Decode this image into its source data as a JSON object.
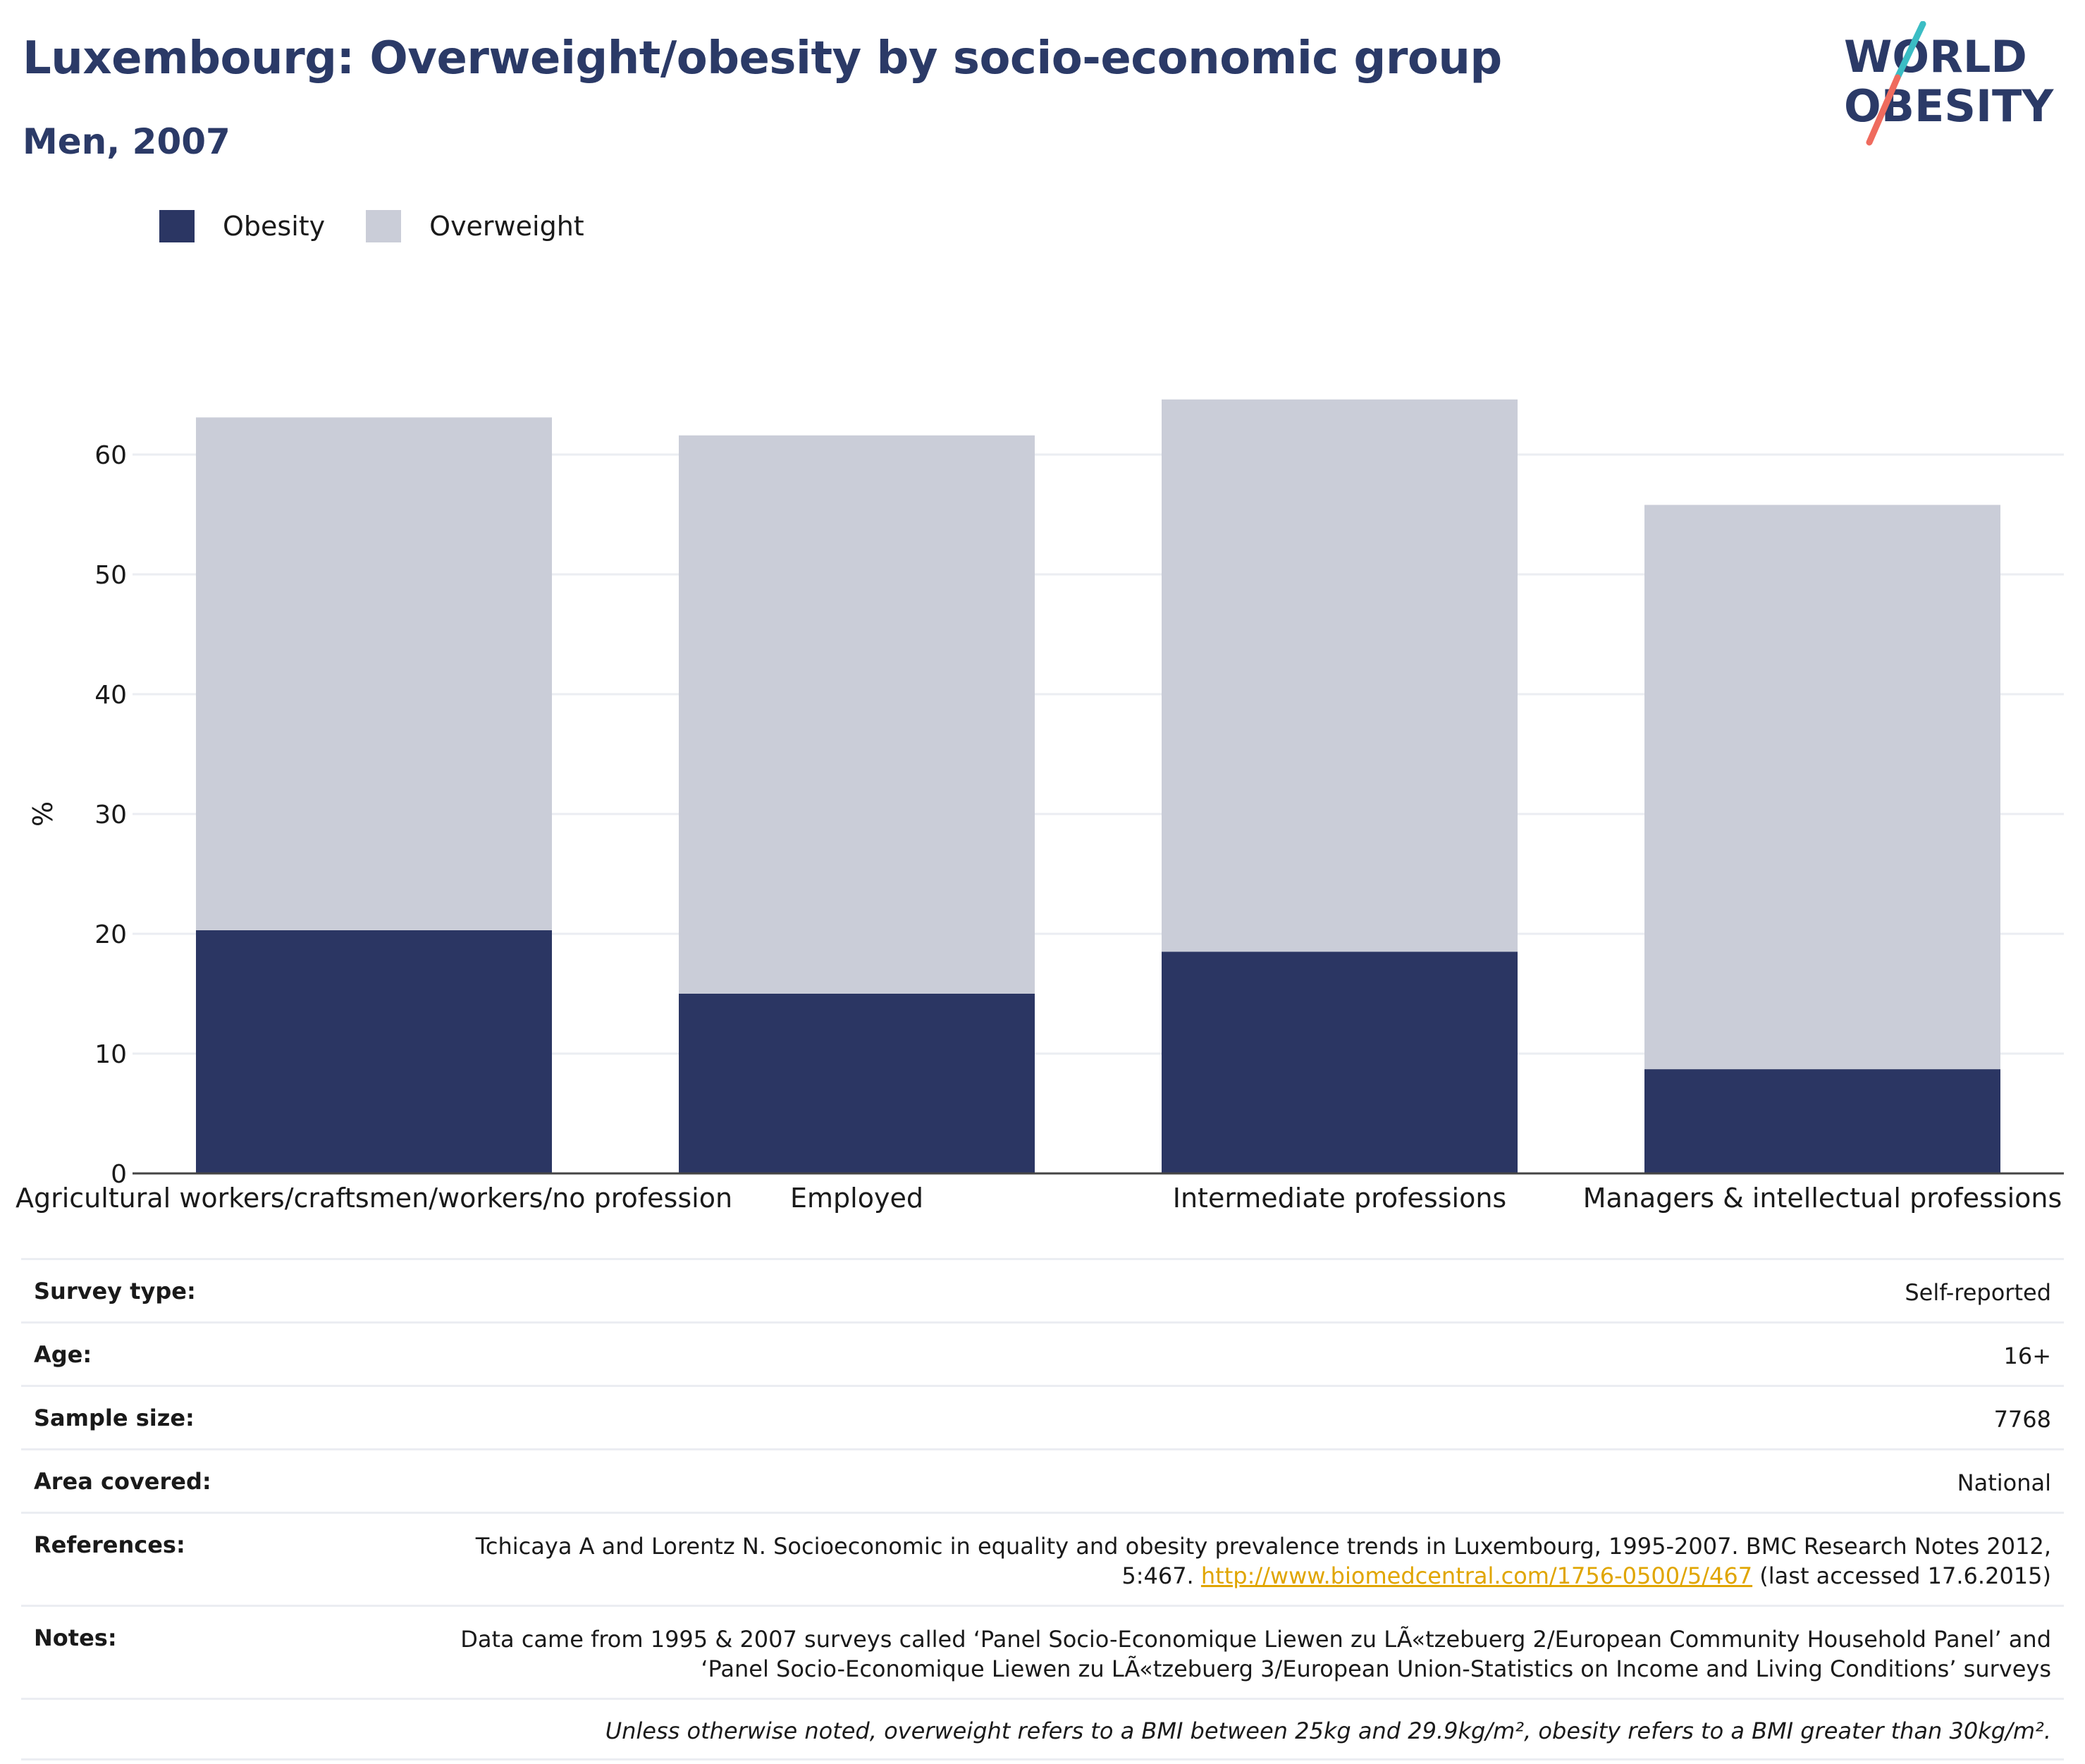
{
  "header": {
    "title": "Luxembourg: Overweight/obesity by socio-economic group",
    "subtitle": "Men, 2007"
  },
  "logo": {
    "line1": "WORLD",
    "line2": "OBESITY"
  },
  "colors": {
    "obesity": "#2b3663",
    "overweight": "#cacdd8",
    "title": "#2b3a67",
    "logo_teal": "#3bbdc4",
    "logo_coral": "#ef6b5e"
  },
  "legend": [
    {
      "label": "Obesity",
      "color": "#2b3663"
    },
    {
      "label": "Overweight",
      "color": "#cacdd8"
    }
  ],
  "chart_data": {
    "type": "bar",
    "stacked": true,
    "categories": [
      "Agricultural workers/craftsmen/workers/no profession",
      "Employed",
      "Intermediate professions",
      "Managers & intellectual professions"
    ],
    "series": [
      {
        "name": "Obesity",
        "values": [
          20.3,
          15.0,
          18.5,
          8.7
        ]
      },
      {
        "name": "Overweight",
        "values": [
          42.8,
          46.6,
          46.1,
          47.1
        ]
      }
    ],
    "ylabel": "%",
    "xlabel": "",
    "ylim": [
      0,
      70
    ],
    "yticks": [
      0,
      10,
      20,
      30,
      40,
      50,
      60
    ],
    "grid": true,
    "legend_position": "top-left"
  },
  "info": [
    {
      "label": "Survey type:",
      "value": "Self-reported"
    },
    {
      "label": "Age:",
      "value": "16+"
    },
    {
      "label": "Sample size:",
      "value": "7768"
    },
    {
      "label": "Area covered:",
      "value": "National"
    }
  ],
  "references": {
    "label": "References:",
    "text_before": "Tchicaya A and Lorentz N. Socioeconomic in equality and obesity prevalence trends in Luxembourg, 1995-2007. BMC Research Notes 2012, 5:467. ",
    "link": "http://www.biomedcentral.com/1756-0500/5/467",
    "text_after": " (last accessed 17.6.2015)"
  },
  "notes": {
    "label": "Notes:",
    "value": "Data came from 1995 & 2007 surveys called ‘Panel Socio-Economique Liewen zu LÃ«tzebuerg 2/European Community Household Panel’ and ‘Panel Socio-Economique Liewen zu LÃ«tzebuerg 3/European Union-Statistics on Income and Living Conditions’ surveys"
  },
  "footnote": "Unless otherwise noted, overweight refers to a BMI between 25kg and 29.9kg/m², obesity refers to a BMI greater than 30kg/m²."
}
